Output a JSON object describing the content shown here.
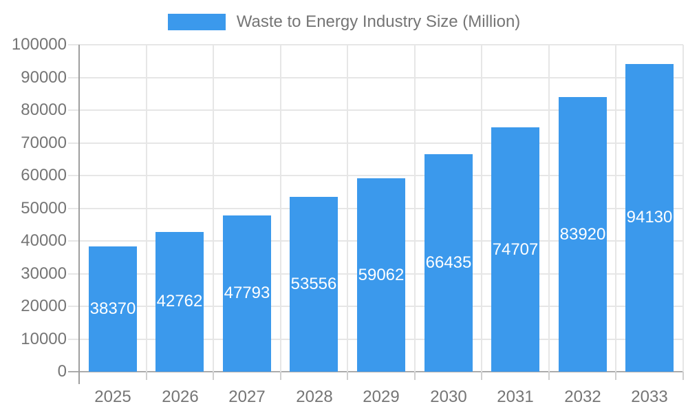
{
  "chart_data": {
    "type": "bar",
    "title": "Waste to Energy Industry Size (Million)",
    "categories": [
      "2025",
      "2026",
      "2027",
      "2028",
      "2029",
      "2030",
      "2031",
      "2032",
      "2033"
    ],
    "values": [
      38370,
      42762,
      47793,
      53556,
      59062,
      66435,
      74707,
      83920,
      94130
    ],
    "value_labels": [
      "38370",
      "42762",
      "47793",
      "53556",
      "59062",
      "66435",
      "74707",
      "83920",
      "94130"
    ],
    "xlabel": "",
    "ylabel": "",
    "ylim": [
      0,
      100000
    ],
    "ytick_step": 10000,
    "yticks": [
      0,
      10000,
      20000,
      30000,
      40000,
      50000,
      60000,
      70000,
      80000,
      90000,
      100000
    ],
    "ytick_labels": [
      "0",
      "10000",
      "20000",
      "30000",
      "40000",
      "50000",
      "60000",
      "70000",
      "80000",
      "90000",
      "100000"
    ],
    "grid": true,
    "legend_position": "top-center",
    "bar_color": "#3B99EC",
    "value_label_color": "#FFFFFF"
  },
  "colors": {
    "background": "#FFFFFF",
    "bar": "#3B99EC",
    "grid": "#E6E6E6",
    "y_axis": "#9E9E9E",
    "x_axis": "#ABABAB",
    "x_tick": "#CFCFCF",
    "label_text": "#757575",
    "value_text": "#FFFFFF"
  }
}
